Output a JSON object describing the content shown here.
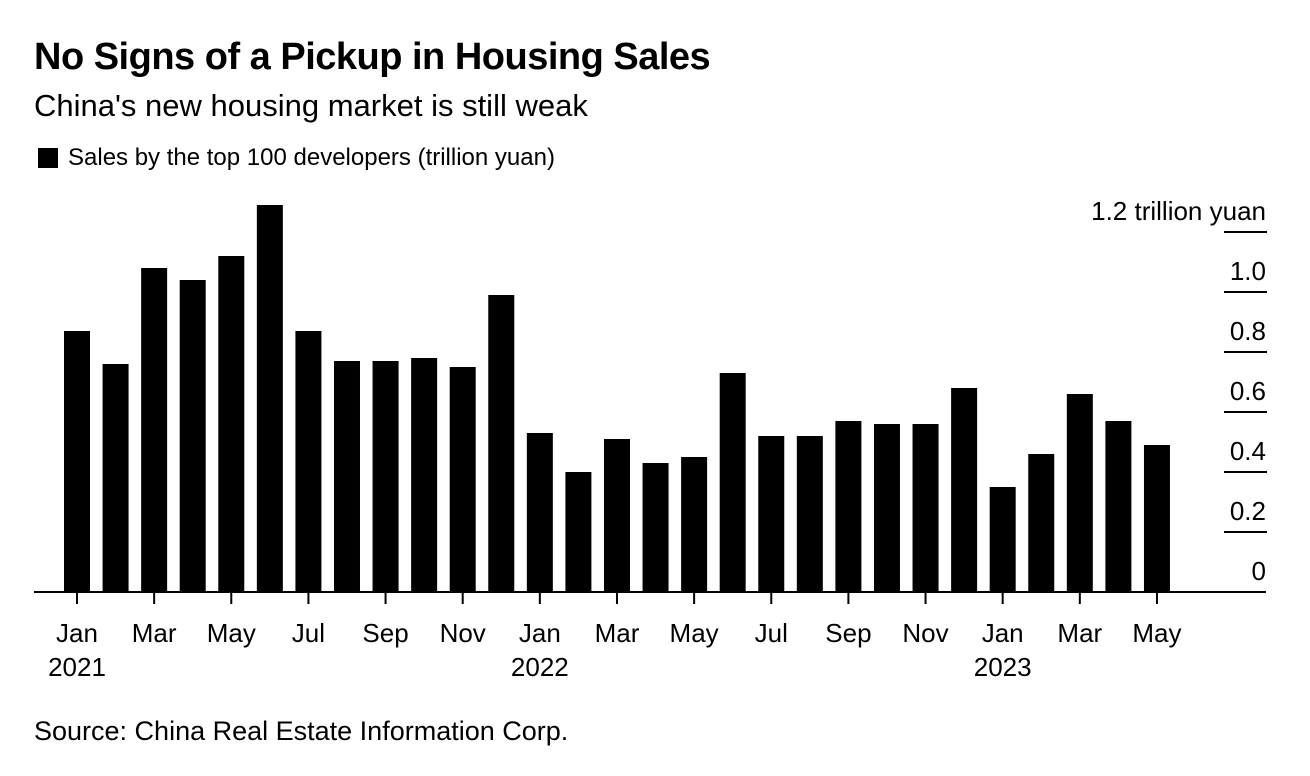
{
  "header": {
    "title": "No Signs of a Pickup in Housing Sales",
    "subtitle": "China's new housing market is still weak"
  },
  "legend": {
    "label": "Sales by the top 100 developers (trillion yuan)"
  },
  "footer": {
    "source": "Source: China Real Estate Information Corp."
  },
  "colors": {
    "bar": "#000000",
    "axis": "#000000",
    "background": "#ffffff"
  },
  "chart_data": {
    "type": "bar",
    "title": "No Signs of a Pickup in Housing Sales",
    "subtitle": "China's new housing market is still weak",
    "ylabel": "",
    "xlabel": "",
    "ylim": [
      0,
      1.2
    ],
    "y_axis_position": "right",
    "y_ticks": [
      0,
      0.2,
      0.4,
      0.6,
      0.8,
      1.0,
      1.2
    ],
    "y_tick_labels": [
      "0",
      "0.2",
      "0.4",
      "0.6",
      "0.8",
      "1.0",
      "1.2 trillion yuan"
    ],
    "grid": false,
    "legend_position": "top-left",
    "series": [
      {
        "name": "Sales by the top 100 developers (trillion yuan)",
        "color": "#000000",
        "values": [
          0.87,
          0.76,
          1.08,
          1.04,
          1.12,
          1.29,
          0.87,
          0.77,
          0.77,
          0.78,
          0.75,
          0.99,
          0.53,
          0.4,
          0.51,
          0.43,
          0.45,
          0.73,
          0.52,
          0.52,
          0.57,
          0.56,
          0.56,
          0.68,
          0.35,
          0.46,
          0.66,
          0.57,
          0.49
        ]
      }
    ],
    "categories": [
      "2021-01",
      "2021-02",
      "2021-03",
      "2021-04",
      "2021-05",
      "2021-06",
      "2021-07",
      "2021-08",
      "2021-09",
      "2021-10",
      "2021-11",
      "2021-12",
      "2022-01",
      "2022-02",
      "2022-03",
      "2022-04",
      "2022-05",
      "2022-06",
      "2022-07",
      "2022-08",
      "2022-09",
      "2022-10",
      "2022-11",
      "2022-12",
      "2023-01",
      "2023-02",
      "2023-03",
      "2023-04",
      "2023-05"
    ],
    "x_tick_labels": [
      {
        "index": 0,
        "label": "Jan",
        "year": "2021"
      },
      {
        "index": 2,
        "label": "Mar",
        "year": ""
      },
      {
        "index": 4,
        "label": "May",
        "year": ""
      },
      {
        "index": 6,
        "label": "Jul",
        "year": ""
      },
      {
        "index": 8,
        "label": "Sep",
        "year": ""
      },
      {
        "index": 10,
        "label": "Nov",
        "year": ""
      },
      {
        "index": 12,
        "label": "Jan",
        "year": "2022"
      },
      {
        "index": 14,
        "label": "Mar",
        "year": ""
      },
      {
        "index": 16,
        "label": "May",
        "year": ""
      },
      {
        "index": 18,
        "label": "Jul",
        "year": ""
      },
      {
        "index": 20,
        "label": "Sep",
        "year": ""
      },
      {
        "index": 22,
        "label": "Nov",
        "year": ""
      },
      {
        "index": 24,
        "label": "Jan",
        "year": "2023"
      },
      {
        "index": 26,
        "label": "Mar",
        "year": ""
      },
      {
        "index": 28,
        "label": "May",
        "year": ""
      }
    ]
  }
}
